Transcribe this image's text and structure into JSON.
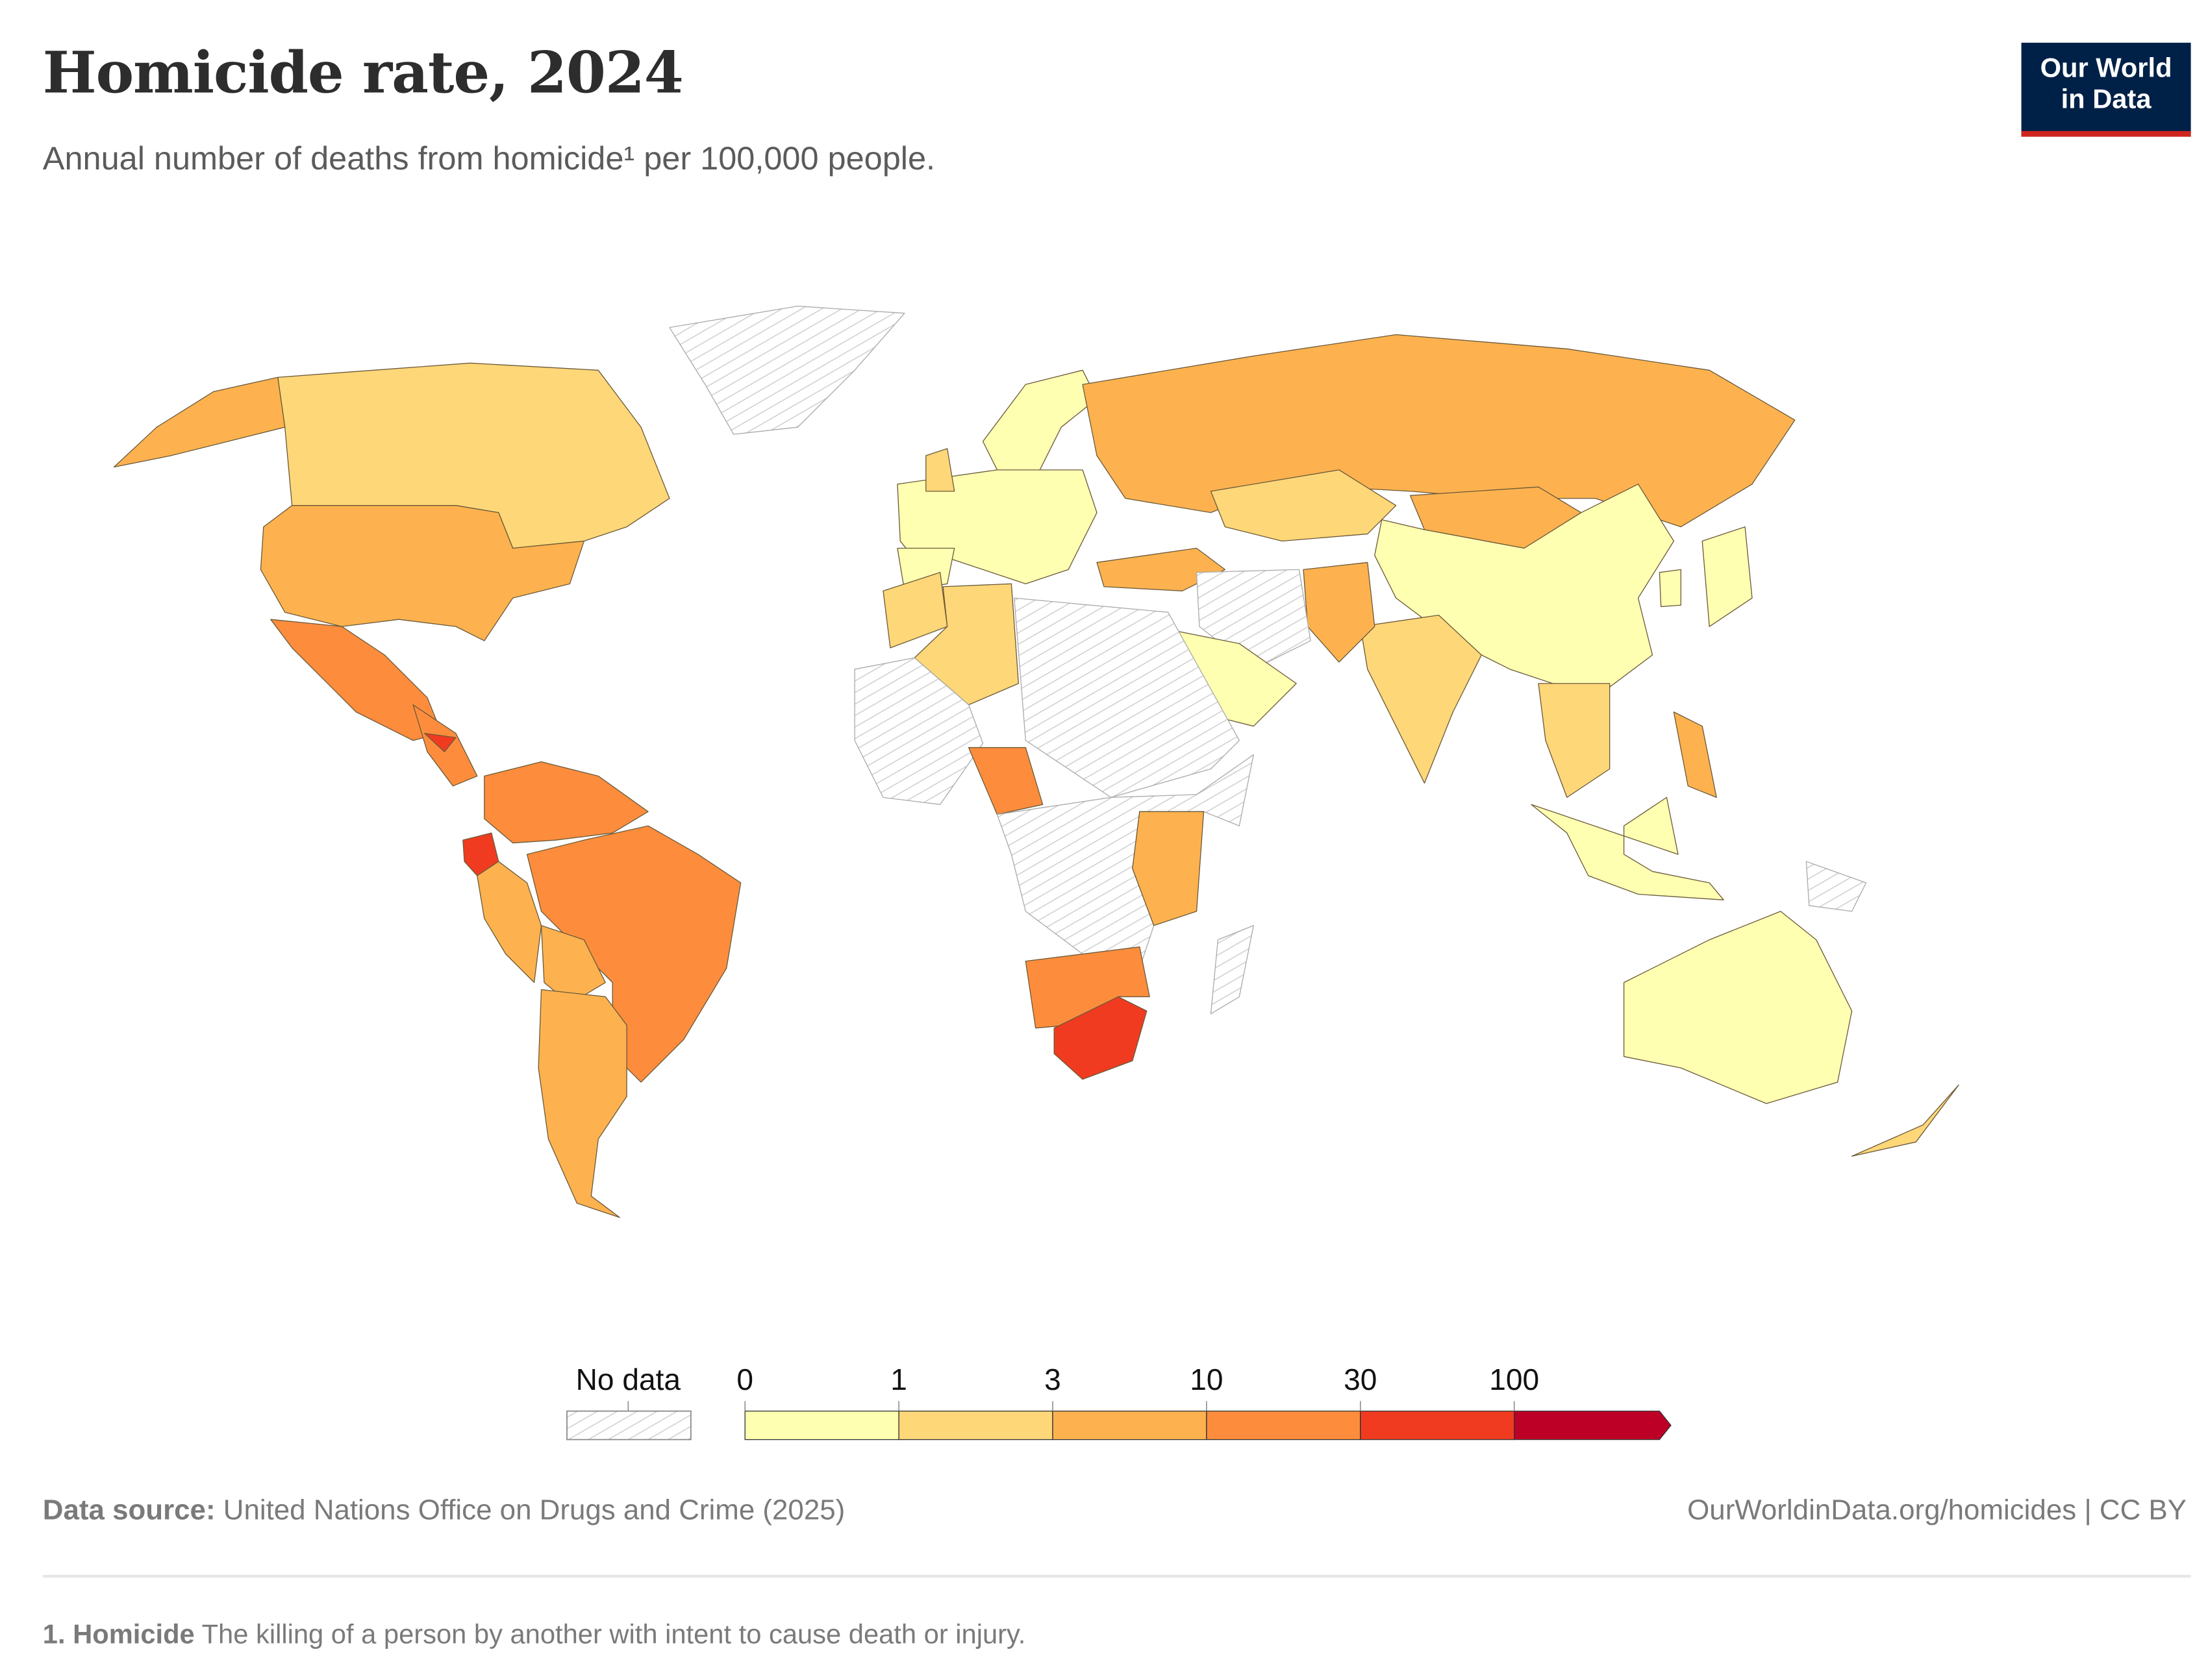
{
  "header": {
    "title": "Homicide rate, 2024",
    "subtitle": "Annual number of deaths from homicide¹ per 100,000 people.",
    "logo_line1": "Our World",
    "logo_line2": "in Data"
  },
  "legend": {
    "no_data_label": "No data",
    "breaks": [
      "0",
      "1",
      "3",
      "10",
      "30",
      "100"
    ],
    "bins": [
      {
        "range": "0-1",
        "color": "#ffffb2"
      },
      {
        "range": "1-3",
        "color": "#fed778"
      },
      {
        "range": "3-10",
        "color": "#fdb24f"
      },
      {
        "range": "10-30",
        "color": "#fd8d3c"
      },
      {
        "range": "30-100",
        "color": "#f03b20"
      },
      {
        "range": "100+",
        "color": "#bd0026"
      }
    ],
    "no_data_color": "#d0d0d0"
  },
  "map_data": {
    "type": "choropleth",
    "countries": [
      {
        "name": "Canada",
        "bin": "1-3"
      },
      {
        "name": "Alaska (United States)",
        "bin": "3-10"
      },
      {
        "name": "United States",
        "bin": "3-10"
      },
      {
        "name": "Mexico",
        "bin": "10-30"
      },
      {
        "name": "Central America",
        "bin": "10-30"
      },
      {
        "name": "Honduras",
        "bin": "30-100"
      },
      {
        "name": "Colombia / Venezuela",
        "bin": "10-30"
      },
      {
        "name": "Ecuador",
        "bin": "30-100"
      },
      {
        "name": "Peru",
        "bin": "3-10"
      },
      {
        "name": "Brazil",
        "bin": "10-30"
      },
      {
        "name": "Bolivia",
        "bin": "3-10"
      },
      {
        "name": "Argentina / Chile",
        "bin": "3-10"
      },
      {
        "name": "Greenland",
        "bin": "no-data"
      },
      {
        "name": "Western Europe",
        "bin": "0-1"
      },
      {
        "name": "Scandinavia",
        "bin": "0-1"
      },
      {
        "name": "United Kingdom",
        "bin": "1-3"
      },
      {
        "name": "Iberia",
        "bin": "0-1"
      },
      {
        "name": "Russia",
        "bin": "3-10"
      },
      {
        "name": "Kazakhstan",
        "bin": "1-3"
      },
      {
        "name": "Mongolia",
        "bin": "3-10"
      },
      {
        "name": "China",
        "bin": "0-1"
      },
      {
        "name": "India",
        "bin": "1-3"
      },
      {
        "name": "Pakistan / Afghanistan",
        "bin": "3-10"
      },
      {
        "name": "Turkey",
        "bin": "3-10"
      },
      {
        "name": "Iran / Iraq",
        "bin": "no-data"
      },
      {
        "name": "Saudi Arabia",
        "bin": "0-1"
      },
      {
        "name": "Morocco",
        "bin": "1-3"
      },
      {
        "name": "Algeria",
        "bin": "1-3"
      },
      {
        "name": "Libya / Egypt / Sudan",
        "bin": "no-data"
      },
      {
        "name": "West Africa",
        "bin": "no-data"
      },
      {
        "name": "Nigeria",
        "bin": "10-30"
      },
      {
        "name": "Central Africa",
        "bin": "no-data"
      },
      {
        "name": "Tanzania / Zambia",
        "bin": "3-10"
      },
      {
        "name": "Namibia / Botswana",
        "bin": "10-30"
      },
      {
        "name": "South Africa",
        "bin": "30-100"
      },
      {
        "name": "Madagascar",
        "bin": "no-data"
      },
      {
        "name": "Southeast Asia",
        "bin": "1-3"
      },
      {
        "name": "Indonesia",
        "bin": "0-1"
      },
      {
        "name": "Philippines",
        "bin": "3-10"
      },
      {
        "name": "Japan",
        "bin": "0-1"
      },
      {
        "name": "South Korea",
        "bin": "0-1"
      },
      {
        "name": "Australia",
        "bin": "0-1"
      },
      {
        "name": "New Zealand",
        "bin": "1-3"
      },
      {
        "name": "Papua New Guinea",
        "bin": "no-data"
      }
    ]
  },
  "footer": {
    "source_label": "Data source:",
    "source_text": "United Nations Office on Drugs and Crime (2025)",
    "url": "OurWorldinData.org/homicides | CC BY"
  },
  "note": {
    "label": "1. Homicide",
    "text": "The killing of a person by another with intent to cause death or injury."
  }
}
